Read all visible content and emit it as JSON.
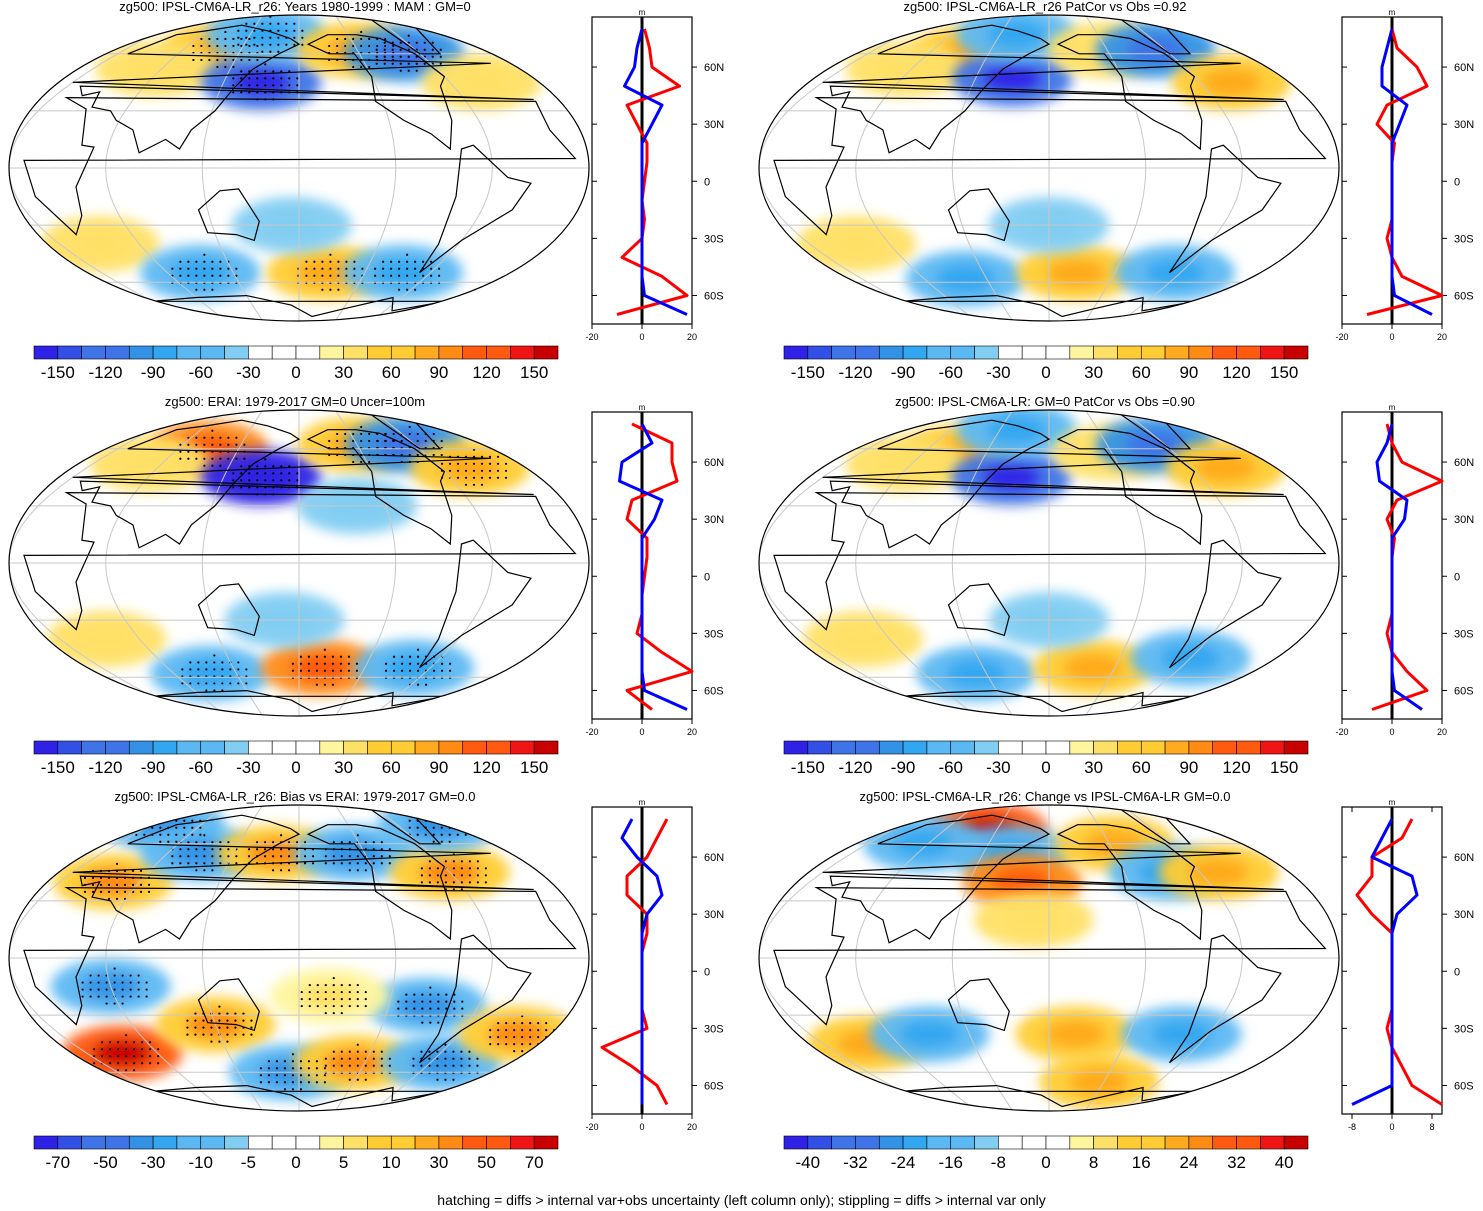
{
  "footer": "hatching = diffs > internal var+obs uncertainty (left column only); stippling = diffs > internal var only",
  "colors": {
    "levels_blue_to_red": [
      "#2f22e6",
      "#3350e6",
      "#3f74e8",
      "#3392e6",
      "#33a6f0",
      "#5cb8f2",
      "#82cdf2",
      "#ffffff",
      "#ffffff",
      "#fff59e",
      "#ffe066",
      "#ffcc33",
      "#ffaa1f",
      "#ff8a14",
      "#ff5a0f",
      "#f01414",
      "#c80000"
    ],
    "zonal_model": "#ff0000",
    "zonal_obs": "#0000ff",
    "coast": "#000000",
    "graticule": "#c8c8c8"
  },
  "zonal_lat_ticks": [
    "60N",
    "30N",
    "0",
    "30S",
    "60S"
  ],
  "zonal_unit": "m",
  "chart_data": [
    {
      "type": "heatmap",
      "title": "zg500: IPSL-CM6A-LR_r26: Years 1980-1999 : MAM : GM=0",
      "colorbar_labels": [
        "-150",
        "-120",
        "-90",
        "-60",
        "-30",
        "0",
        "30",
        "60",
        "90",
        "120",
        "150"
      ],
      "zonal_xticks": [
        "-20",
        "0",
        "20"
      ],
      "zonal_xlim": [
        -20,
        20
      ],
      "stippling": true,
      "anomalies": [
        {
          "lon": 100,
          "lat": 62,
          "value": 60
        },
        {
          "lon": 55,
          "lat": 52,
          "value": 30
        },
        {
          "lon": 150,
          "lat": 45,
          "value": -120
        },
        {
          "lon": 140,
          "lat": 70,
          "value": -60
        },
        {
          "lon": 240,
          "lat": 62,
          "value": 60
        },
        {
          "lon": 285,
          "lat": 60,
          "value": -90
        },
        {
          "lon": 325,
          "lat": 45,
          "value": 30
        },
        {
          "lon": 30,
          "lat": -40,
          "value": 30
        },
        {
          "lon": 90,
          "lat": -55,
          "value": -60
        },
        {
          "lon": 205,
          "lat": -55,
          "value": 60
        },
        {
          "lon": 275,
          "lat": -55,
          "value": -60
        },
        {
          "lon": 175,
          "lat": -30,
          "value": -30
        }
      ],
      "zonal_profile": {
        "lat": [
          80,
          70,
          60,
          50,
          40,
          30,
          20,
          10,
          0,
          -10,
          -20,
          -30,
          -40,
          -50,
          -60,
          -70
        ],
        "model": [
          1,
          3,
          4,
          15,
          -6,
          -2,
          2,
          2,
          1,
          0,
          1,
          0,
          -8,
          8,
          18,
          -10
        ],
        "obs": [
          0,
          -2,
          -3,
          -7,
          8,
          4,
          0,
          0,
          0,
          0,
          0,
          0,
          0,
          0,
          1,
          18
        ]
      }
    },
    {
      "type": "heatmap",
      "title": "zg500: IPSL-CM6A-LR_r26 PatCor vs Obs =0.92",
      "colorbar_labels": [
        "-150",
        "-120",
        "-90",
        "-60",
        "-30",
        "0",
        "30",
        "60",
        "90",
        "120",
        "150"
      ],
      "zonal_xticks": [
        "-20",
        "0",
        "20"
      ],
      "zonal_xlim": [
        -20,
        20
      ],
      "stippling": false,
      "anomalies": [
        {
          "lon": 100,
          "lat": 60,
          "value": 60
        },
        {
          "lon": 55,
          "lat": 52,
          "value": 30
        },
        {
          "lon": 150,
          "lat": 47,
          "value": -120
        },
        {
          "lon": 140,
          "lat": 70,
          "value": -60
        },
        {
          "lon": 240,
          "lat": 62,
          "value": 30
        },
        {
          "lon": 290,
          "lat": 62,
          "value": -90
        },
        {
          "lon": 325,
          "lat": 45,
          "value": 60
        },
        {
          "lon": 35,
          "lat": -40,
          "value": 30
        },
        {
          "lon": 100,
          "lat": -58,
          "value": -60
        },
        {
          "lon": 205,
          "lat": -55,
          "value": 60
        },
        {
          "lon": 295,
          "lat": -55,
          "value": -60
        },
        {
          "lon": 180,
          "lat": -30,
          "value": -30
        }
      ],
      "zonal_profile": {
        "lat": [
          80,
          70,
          60,
          50,
          40,
          30,
          20,
          10,
          0,
          -10,
          -20,
          -30,
          -40,
          -50,
          -60,
          -70
        ],
        "model": [
          0,
          2,
          10,
          14,
          -2,
          -6,
          1,
          0,
          0,
          0,
          0,
          -2,
          0,
          4,
          22,
          -10
        ],
        "obs": [
          0,
          -2,
          -4,
          -4,
          6,
          3,
          0,
          0,
          0,
          0,
          0,
          0,
          0,
          0,
          1,
          16
        ]
      }
    },
    {
      "type": "heatmap",
      "title": "zg500: ERAI: 1979-2017 GM=0 Uncer=100m",
      "colorbar_labels": [
        "-150",
        "-120",
        "-90",
        "-60",
        "-30",
        "0",
        "30",
        "60",
        "90",
        "120",
        "150"
      ],
      "zonal_xticks": [
        "-20",
        "0",
        "20"
      ],
      "zonal_xlim": [
        -20,
        20
      ],
      "stippling": true,
      "anomalies": [
        {
          "lon": 90,
          "lat": 60,
          "value": 90
        },
        {
          "lon": 50,
          "lat": 52,
          "value": 30
        },
        {
          "lon": 150,
          "lat": 45,
          "value": -150
        },
        {
          "lon": 240,
          "lat": 62,
          "value": 60
        },
        {
          "lon": 290,
          "lat": 62,
          "value": -90
        },
        {
          "lon": 325,
          "lat": 50,
          "value": 60
        },
        {
          "lon": 220,
          "lat": 30,
          "value": -30
        },
        {
          "lon": 35,
          "lat": -40,
          "value": 30
        },
        {
          "lon": 95,
          "lat": -58,
          "value": -60
        },
        {
          "lon": 200,
          "lat": -55,
          "value": 90
        },
        {
          "lon": 285,
          "lat": -55,
          "value": -60
        },
        {
          "lon": 170,
          "lat": -30,
          "value": -30
        }
      ],
      "zonal_profile": {
        "lat": [
          80,
          70,
          60,
          50,
          40,
          30,
          20,
          10,
          0,
          -10,
          -20,
          -30,
          -40,
          -50,
          -60,
          -70
        ],
        "model": [
          -4,
          12,
          12,
          14,
          -4,
          -6,
          2,
          2,
          1,
          0,
          0,
          -2,
          8,
          20,
          -6,
          4
        ],
        "obs": [
          0,
          4,
          -8,
          -9,
          8,
          5,
          0,
          0,
          0,
          0,
          0,
          0,
          0,
          0,
          1,
          18
        ]
      }
    },
    {
      "type": "heatmap",
      "title": "zg500: IPSL-CM6A-LR: GM=0 PatCor vs Obs =0.90",
      "colorbar_labels": [
        "-150",
        "-120",
        "-90",
        "-60",
        "-30",
        "0",
        "30",
        "60",
        "90",
        "120",
        "150"
      ],
      "zonal_xticks": [
        "-20",
        "0",
        "20"
      ],
      "zonal_xlim": [
        -20,
        20
      ],
      "stippling": false,
      "anomalies": [
        {
          "lon": 95,
          "lat": 58,
          "value": 60
        },
        {
          "lon": 55,
          "lat": 52,
          "value": 30
        },
        {
          "lon": 150,
          "lat": 45,
          "value": -120
        },
        {
          "lon": 140,
          "lat": 70,
          "value": -60
        },
        {
          "lon": 240,
          "lat": 58,
          "value": 30
        },
        {
          "lon": 290,
          "lat": 62,
          "value": -90
        },
        {
          "lon": 330,
          "lat": 50,
          "value": 60
        },
        {
          "lon": 40,
          "lat": -40,
          "value": 30
        },
        {
          "lon": 110,
          "lat": -58,
          "value": -60
        },
        {
          "lon": 220,
          "lat": -55,
          "value": 60
        },
        {
          "lon": 300,
          "lat": -50,
          "value": -60
        },
        {
          "lon": 180,
          "lat": -30,
          "value": -30
        }
      ],
      "zonal_profile": {
        "lat": [
          80,
          70,
          60,
          50,
          40,
          30,
          20,
          10,
          0,
          -10,
          -20,
          -30,
          -40,
          -50,
          -60,
          -70
        ],
        "model": [
          -2,
          0,
          4,
          20,
          2,
          -2,
          1,
          0,
          0,
          0,
          0,
          -2,
          0,
          6,
          14,
          -8
        ],
        "obs": [
          0,
          -2,
          -6,
          -5,
          6,
          5,
          0,
          0,
          0,
          0,
          0,
          0,
          0,
          0,
          1,
          12
        ]
      }
    },
    {
      "type": "heatmap",
      "title": "zg500: IPSL-CM6A-LR_r26: Bias vs ERAI: 1979-2017 GM=0.0",
      "colorbar_labels": [
        "-70",
        "-50",
        "-30",
        "-10",
        "-5",
        "0",
        "5",
        "10",
        "30",
        "50",
        "70"
      ],
      "zonal_xticks": [
        "-20",
        "0",
        "20"
      ],
      "zonal_xlim": [
        -20,
        20
      ],
      "stippling": true,
      "anomalies": [
        {
          "lon": 15,
          "lat": 70,
          "value": -30
        },
        {
          "lon": 40,
          "lat": 40,
          "value": 30
        },
        {
          "lon": 90,
          "lat": 55,
          "value": -30
        },
        {
          "lon": 160,
          "lat": 55,
          "value": 30
        },
        {
          "lon": 230,
          "lat": 55,
          "value": -30
        },
        {
          "lon": 300,
          "lat": 45,
          "value": 30
        },
        {
          "lon": 350,
          "lat": 70,
          "value": -30
        },
        {
          "lon": 30,
          "lat": -50,
          "value": 50
        },
        {
          "lon": 60,
          "lat": -15,
          "value": -30
        },
        {
          "lon": 120,
          "lat": -35,
          "value": 30
        },
        {
          "lon": 170,
          "lat": -60,
          "value": -30
        },
        {
          "lon": 230,
          "lat": -55,
          "value": 30
        },
        {
          "lon": 265,
          "lat": -25,
          "value": -30
        },
        {
          "lon": 310,
          "lat": -55,
          "value": -30
        },
        {
          "lon": 345,
          "lat": -40,
          "value": 30
        },
        {
          "lon": 200,
          "lat": -20,
          "value": 10
        }
      ],
      "zonal_profile": {
        "lat": [
          80,
          70,
          60,
          50,
          40,
          30,
          20,
          10,
          0,
          -10,
          -20,
          -30,
          -40,
          -50,
          -60,
          -70
        ],
        "model": [
          10,
          6,
          2,
          -6,
          -6,
          2,
          2,
          0,
          0,
          0,
          0,
          2,
          -16,
          -4,
          6,
          10
        ],
        "obs": [
          -4,
          -8,
          -2,
          6,
          8,
          2,
          0,
          0,
          0,
          0,
          0,
          0,
          0,
          0,
          0,
          0
        ]
      }
    },
    {
      "type": "heatmap",
      "title": "zg500: IPSL-CM6A-LR_r26: Change vs IPSL-CM6A-LR GM=0.0",
      "colorbar_labels": [
        "-40",
        "-32",
        "-24",
        "-16",
        "-8",
        "0",
        "8",
        "16",
        "24",
        "32",
        "40"
      ],
      "zonal_xticks": [
        "-8",
        "0",
        "8"
      ],
      "zonal_xlim": [
        -10,
        10
      ],
      "stippling": false,
      "anomalies": [
        {
          "lon": 110,
          "lat": 67,
          "value": 32
        },
        {
          "lon": 55,
          "lat": 60,
          "value": -16
        },
        {
          "lon": 145,
          "lat": 55,
          "value": -16
        },
        {
          "lon": 160,
          "lat": 40,
          "value": 24
        },
        {
          "lon": 245,
          "lat": 60,
          "value": 16
        },
        {
          "lon": 275,
          "lat": 45,
          "value": -16
        },
        {
          "lon": 315,
          "lat": 45,
          "value": 16
        },
        {
          "lon": 35,
          "lat": -45,
          "value": 16
        },
        {
          "lon": 90,
          "lat": -40,
          "value": -16
        },
        {
          "lon": 200,
          "lat": -40,
          "value": 16
        },
        {
          "lon": 280,
          "lat": -40,
          "value": -16
        },
        {
          "lon": 235,
          "lat": -65,
          "value": 16
        },
        {
          "lon": 170,
          "lat": 20,
          "value": 8
        }
      ],
      "zonal_profile": {
        "lat": [
          80,
          70,
          60,
          50,
          40,
          30,
          20,
          10,
          0,
          -10,
          -20,
          -30,
          -40,
          -50,
          -60,
          -70
        ],
        "model": [
          4,
          2,
          -4,
          -4,
          -7,
          -4,
          0,
          0,
          0,
          0,
          0,
          -1,
          0,
          2,
          4,
          10
        ],
        "obs": [
          0,
          -2,
          -4,
          4,
          5,
          1,
          0,
          0,
          0,
          0,
          0,
          0,
          0,
          0,
          0,
          -8
        ]
      }
    }
  ]
}
